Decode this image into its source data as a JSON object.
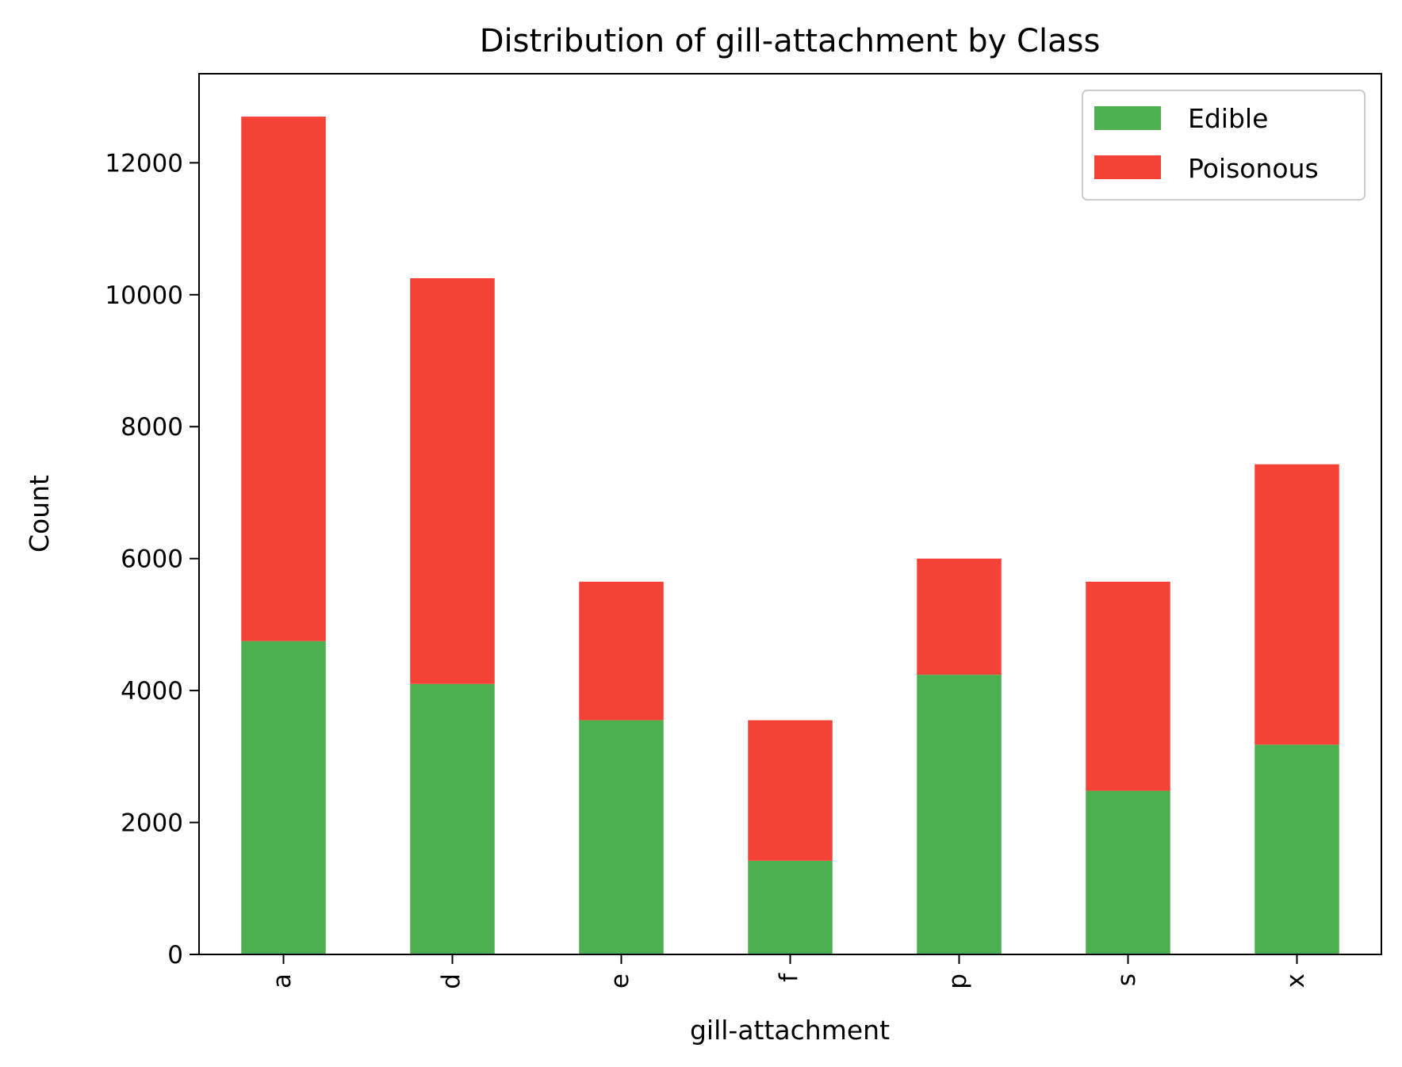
{
  "chart_data": {
    "type": "bar",
    "stacked": true,
    "title": "Distribution of gill-attachment by Class",
    "xlabel": "gill-attachment",
    "ylabel": "Count",
    "categories": [
      "a",
      "d",
      "e",
      "f",
      "p",
      "s",
      "x"
    ],
    "series": [
      {
        "name": "Edible",
        "color": "#4caf50",
        "values": [
          4750,
          4100,
          3550,
          1420,
          4240,
          2480,
          3180
        ]
      },
      {
        "name": "Poisonous",
        "color": "#f44336",
        "values": [
          7950,
          6150,
          2100,
          2130,
          1760,
          3170,
          4250
        ]
      }
    ],
    "ylim": [
      0,
      13350
    ],
    "yticks": [
      0,
      2000,
      4000,
      6000,
      8000,
      10000,
      12000
    ],
    "ytick_labels": [
      "0",
      "2000",
      "4000",
      "6000",
      "8000",
      "10000",
      "12000"
    ],
    "grid": false,
    "legend_position": "top-right"
  }
}
